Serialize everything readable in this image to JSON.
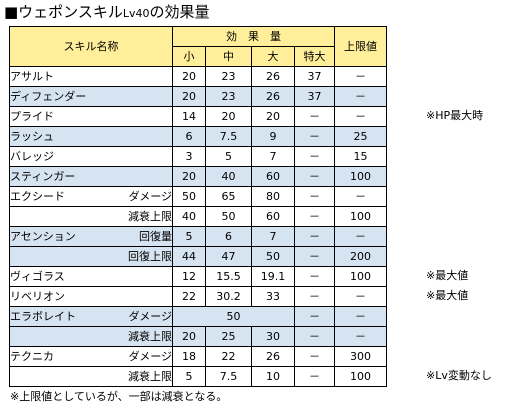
{
  "title": {
    "main": "■ウェポンスキル",
    "lv": "Lv40",
    "suffix": "の効果量"
  },
  "header": {
    "skill_name": "スキル名称",
    "effect": "効　果　量",
    "limit": "上限値",
    "small": "小",
    "medium": "中",
    "large": "大",
    "special": "特大"
  },
  "rows": [
    {
      "name": "アサルト",
      "sub": "",
      "blue": false,
      "small": "20",
      "medium": "23",
      "large": "26",
      "special": "37",
      "limit": "－"
    },
    {
      "name": "ディフェンダー",
      "sub": "",
      "blue": true,
      "small": "20",
      "medium": "23",
      "large": "26",
      "special": "37",
      "limit": "－"
    },
    {
      "name": "プライド",
      "sub": "",
      "blue": false,
      "small": "14",
      "medium": "20",
      "large": "20",
      "special": "－",
      "limit": "－"
    },
    {
      "name": "ラッシュ",
      "sub": "",
      "blue": true,
      "small": "6",
      "medium": "7.5",
      "large": "9",
      "special": "－",
      "limit": "25"
    },
    {
      "name": "バレッジ",
      "sub": "",
      "blue": false,
      "small": "3",
      "medium": "5",
      "large": "7",
      "special": "－",
      "limit": "15"
    },
    {
      "name": "スティンガー",
      "sub": "",
      "blue": true,
      "small": "20",
      "medium": "40",
      "large": "60",
      "special": "－",
      "limit": "100"
    },
    {
      "name": "エクシード",
      "sub": "ダメージ",
      "blue": false,
      "small": "50",
      "medium": "65",
      "large": "80",
      "special": "－",
      "limit": "－"
    },
    {
      "name": "",
      "sub": "減衰上限",
      "blue": false,
      "small": "40",
      "medium": "50",
      "large": "60",
      "special": "－",
      "limit": "100"
    },
    {
      "name": "アセンション",
      "sub": "回復量",
      "blue": true,
      "small": "5",
      "medium": "6",
      "large": "7",
      "special": "－",
      "limit": "－"
    },
    {
      "name": "",
      "sub": "回復上限",
      "blue": true,
      "small": "44",
      "medium": "47",
      "large": "50",
      "special": "－",
      "limit": "200"
    },
    {
      "name": "ヴィゴラス",
      "sub": "",
      "blue": false,
      "small": "12",
      "medium": "15.5",
      "large": "19.1",
      "special": "－",
      "limit": "100"
    },
    {
      "name": "リベリオン",
      "sub": "",
      "blue": false,
      "small": "22",
      "medium": "30.2",
      "large": "33",
      "special": "－",
      "limit": "－"
    },
    {
      "name": "エラボレイト",
      "sub": "ダメージ",
      "blue": true,
      "merged": "50",
      "special": "－",
      "limit": "－"
    },
    {
      "name": "",
      "sub": "減衰上限",
      "blue": true,
      "small": "20",
      "medium": "25",
      "large": "30",
      "special": "－",
      "limit": "－"
    },
    {
      "name": "テクニカ",
      "sub": "ダメージ",
      "blue": false,
      "small": "18",
      "medium": "22",
      "large": "26",
      "special": "－",
      "limit": "300"
    },
    {
      "name": "",
      "sub": "減衰上限",
      "blue": false,
      "small": "5",
      "medium": "7.5",
      "large": "10",
      "special": "－",
      "limit": "100"
    }
  ],
  "notes": {
    "hp_max": "※HP最大時",
    "max1": "※最大値",
    "max2": "※最大値",
    "lv_fixed": "※Lv変動なし"
  },
  "footnote": "※上限値としているが、一部は減衰となる。",
  "colors": {
    "header_bg": "#ffef9a",
    "row_blue": "#d6e4f2"
  }
}
